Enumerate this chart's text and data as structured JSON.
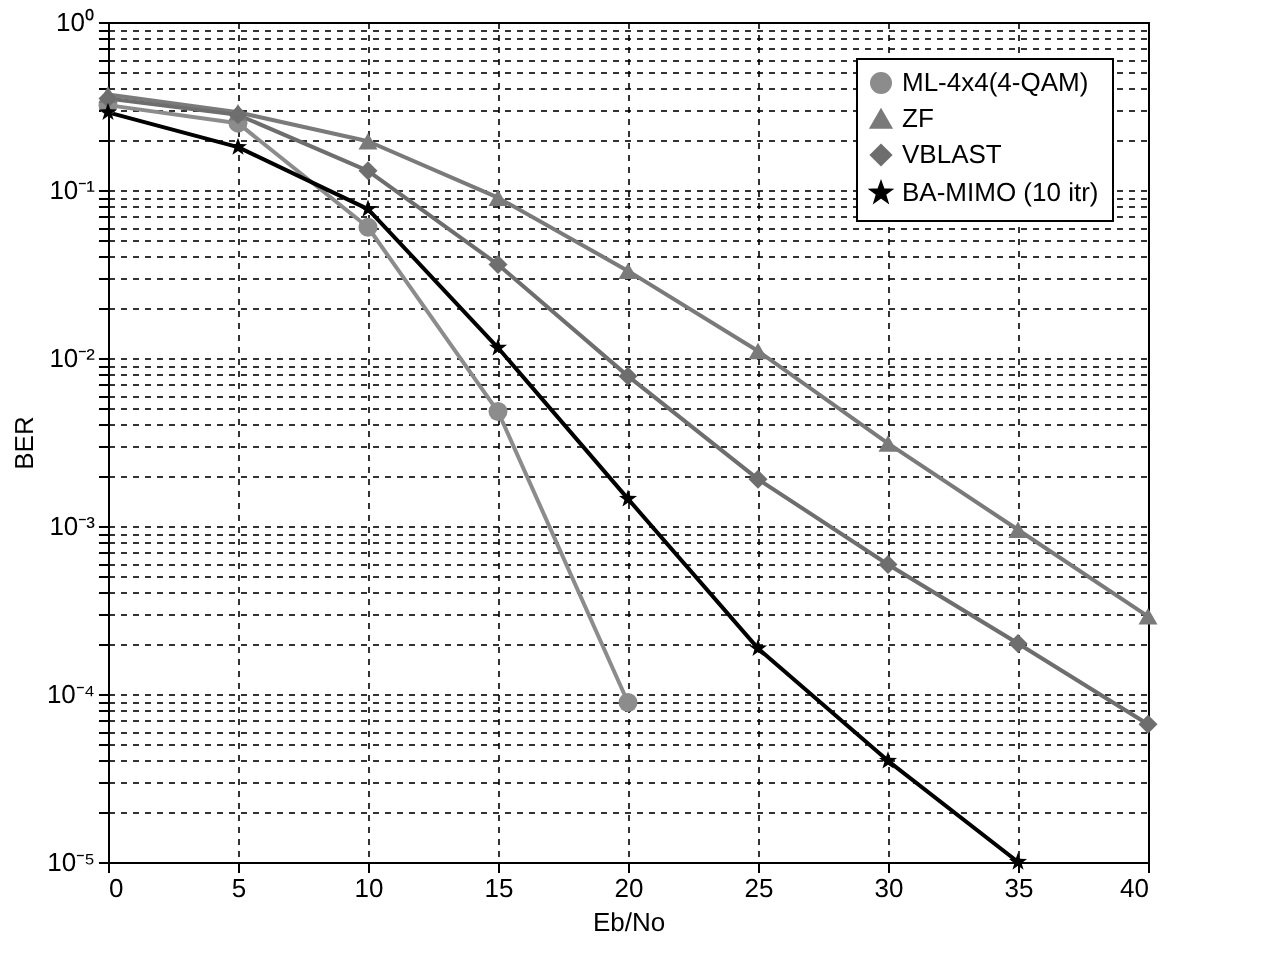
{
  "chart_data": {
    "type": "line",
    "xlabel": "Eb/No",
    "ylabel": "BER",
    "log": "y",
    "grid": true,
    "legend": "top right",
    "line_style": "solid",
    "x": [
      0,
      5,
      10,
      15,
      20,
      25,
      30,
      35,
      40
    ],
    "xlim": [
      0,
      40
    ],
    "xticks": [
      0,
      5,
      10,
      15,
      20,
      25,
      30,
      35,
      40
    ],
    "ylim": [
      1e-05,
      1
    ],
    "yticks": [
      {
        "value": 1,
        "label": "10⁰"
      },
      {
        "value": 0.1,
        "label": "10⁻¹"
      },
      {
        "value": 0.01,
        "label": "10⁻²"
      },
      {
        "value": 0.001,
        "label": "10⁻³"
      },
      {
        "value": 0.0001,
        "label": "10⁻⁴"
      },
      {
        "value": 1e-05,
        "label": "10⁻⁵"
      },
      {
        "value": 0.9,
        "label": null
      },
      {
        "value": 0.8,
        "label": null
      },
      {
        "value": 0.7,
        "label": null
      },
      {
        "value": 0.6,
        "label": null
      },
      {
        "value": 0.5,
        "label": null
      },
      {
        "value": 0.4,
        "label": null
      },
      {
        "value": 0.3,
        "label": null
      },
      {
        "value": 0.2,
        "label": null
      },
      {
        "value": 0.09,
        "label": null
      },
      {
        "value": 0.08,
        "label": null
      },
      {
        "value": 0.07,
        "label": null
      },
      {
        "value": 0.06,
        "label": null
      },
      {
        "value": 0.05,
        "label": null
      },
      {
        "value": 0.04,
        "label": null
      },
      {
        "value": 0.03,
        "label": null
      },
      {
        "value": 0.02,
        "label": null
      },
      {
        "value": 0.009,
        "label": null
      },
      {
        "value": 0.008,
        "label": null
      },
      {
        "value": 0.007,
        "label": null
      },
      {
        "value": 0.006,
        "label": null
      },
      {
        "value": 0.005,
        "label": null
      },
      {
        "value": 0.004,
        "label": null
      },
      {
        "value": 0.003,
        "label": null
      },
      {
        "value": 0.002,
        "label": null
      },
      {
        "value": 0.0009,
        "label": null
      },
      {
        "value": 0.0008,
        "label": null
      },
      {
        "value": 0.0007,
        "label": null
      },
      {
        "value": 0.0006,
        "label": null
      },
      {
        "value": 0.0005,
        "label": null
      },
      {
        "value": 0.0004,
        "label": null
      },
      {
        "value": 0.0003,
        "label": null
      },
      {
        "value": 0.0002,
        "label": null
      },
      {
        "value": 9e-05,
        "label": null
      },
      {
        "value": 8e-05,
        "label": null
      },
      {
        "value": 7e-05,
        "label": null
      },
      {
        "value": 6e-05,
        "label": null
      },
      {
        "value": 5e-05,
        "label": null
      },
      {
        "value": 4e-05,
        "label": null
      },
      {
        "value": 3e-05,
        "label": null
      },
      {
        "value": 2e-05,
        "label": null
      }
    ],
    "series": [
      {
        "name": "ML-4x4(4-QAM)",
        "color": "#8c8c8c",
        "marker": "circle",
        "x": [
          0,
          5,
          10,
          15,
          20
        ],
        "values": [
          0.32,
          0.25,
          0.06,
          0.0048,
          8.9e-05
        ]
      },
      {
        "name": "ZF",
        "color": "#7a7a7a",
        "marker": "triangle",
        "values": [
          0.37,
          0.29,
          0.195,
          0.09,
          0.033,
          0.011,
          0.0031,
          0.00095,
          0.00029
        ]
      },
      {
        "name": "VBLAST",
        "color": "#6e6e6e",
        "marker": "diamond",
        "values": [
          0.35,
          0.28,
          0.13,
          0.036,
          0.0078,
          0.0019,
          0.00059,
          0.0002,
          6.6e-05
        ]
      },
      {
        "name": "BA-MIMO (10 itr)",
        "color": "#000000",
        "marker": "star",
        "x": [
          0,
          5,
          10,
          15,
          20,
          25,
          30,
          35
        ],
        "values": [
          0.29,
          0.18,
          0.077,
          0.0115,
          0.00145,
          0.000187,
          4e-05,
          1e-05
        ]
      }
    ]
  }
}
